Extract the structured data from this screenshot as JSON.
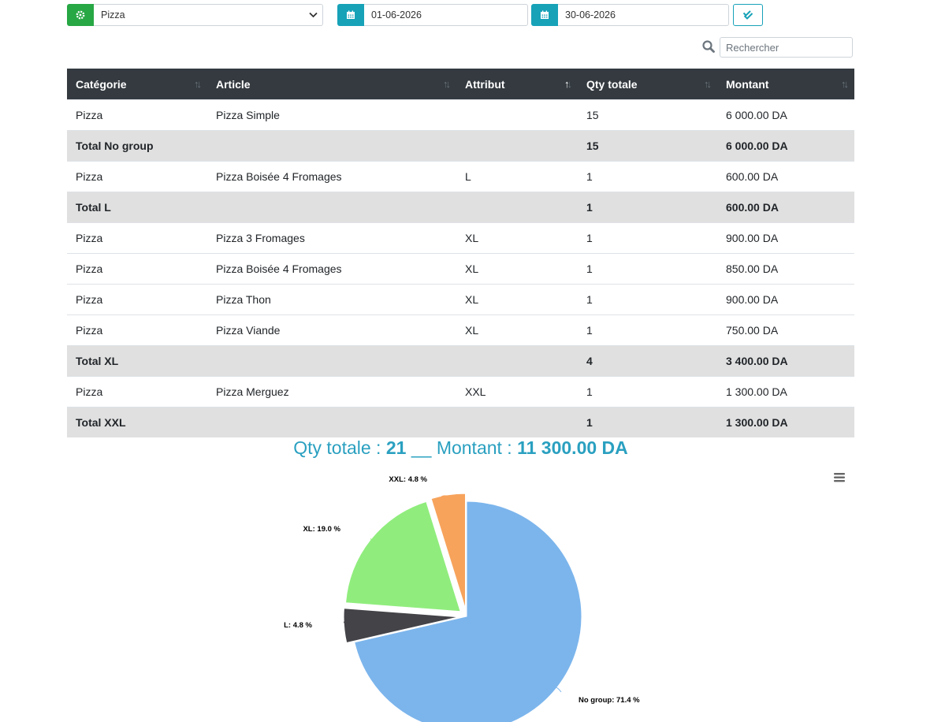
{
  "filters": {
    "category": {
      "icon": "cog-icon",
      "value": "Pizza"
    },
    "date_from": {
      "icon": "calendar-icon",
      "value": "01-06-2026"
    },
    "date_to": {
      "icon": "calendar-icon",
      "value": "30-06-2026"
    },
    "validate_icon": "double-check-icon"
  },
  "search": {
    "placeholder": "Rechercher",
    "icon": "search-icon"
  },
  "table": {
    "columns": [
      "Catégorie",
      "Article",
      "Attribut",
      "Qty totale",
      "Montant"
    ],
    "sorted_column": "Attribut",
    "sort_direction": "asc",
    "rows": [
      {
        "type": "row",
        "categorie": "Pizza",
        "article": "Pizza Simple",
        "attribut": "",
        "qty": "15",
        "montant": "6 000.00 DA"
      },
      {
        "type": "total",
        "label": "Total No group",
        "qty": "15",
        "montant": "6 000.00 DA"
      },
      {
        "type": "row",
        "categorie": "Pizza",
        "article": "Pizza Boisée 4 Fromages",
        "attribut": "L",
        "qty": "1",
        "montant": "600.00 DA"
      },
      {
        "type": "total",
        "label": "Total L",
        "qty": "1",
        "montant": "600.00 DA"
      },
      {
        "type": "row",
        "categorie": "Pizza",
        "article": "Pizza 3 Fromages",
        "attribut": "XL",
        "qty": "1",
        "montant": "900.00 DA"
      },
      {
        "type": "row",
        "categorie": "Pizza",
        "article": "Pizza Boisée 4 Fromages",
        "attribut": "XL",
        "qty": "1",
        "montant": "850.00 DA"
      },
      {
        "type": "row",
        "categorie": "Pizza",
        "article": "Pizza Thon",
        "attribut": "XL",
        "qty": "1",
        "montant": "900.00 DA"
      },
      {
        "type": "row",
        "categorie": "Pizza",
        "article": "Pizza Viande",
        "attribut": "XL",
        "qty": "1",
        "montant": "750.00 DA"
      },
      {
        "type": "total",
        "label": "Total XL",
        "qty": "4",
        "montant": "3 400.00 DA"
      },
      {
        "type": "row",
        "categorie": "Pizza",
        "article": "Pizza Merguez",
        "attribut": "XXL",
        "qty": "1",
        "montant": "1 300.00 DA"
      },
      {
        "type": "total",
        "label": "Total XXL",
        "qty": "1",
        "montant": "1 300.00 DA"
      }
    ]
  },
  "summary": {
    "qty_label": "Qty totale : ",
    "qty_value": "21",
    "separator": " __ ",
    "amount_label": "Montant : ",
    "amount_value": "11 300.00 DA"
  },
  "chart_menu_icon": "hamburger-menu-icon",
  "chart_data": {
    "type": "pie",
    "slices": [
      {
        "name": "No group",
        "value": 71.4,
        "label": "No group: 71.4 %",
        "color": "#7cb5ec",
        "sliced": false
      },
      {
        "name": "L",
        "value": 4.8,
        "label": "L: 4.8 %",
        "color": "#434348",
        "sliced": true
      },
      {
        "name": "XL",
        "value": 19.0,
        "label": "XL: 19.0 %",
        "color": "#90ed7d",
        "sliced": true
      },
      {
        "name": "XXL",
        "value": 4.8,
        "label": "XXL: 4.8 %",
        "color": "#f7a35c",
        "sliced": true
      }
    ]
  },
  "colors": {
    "header_bg": "#343a40",
    "total_row_bg": "#e0e0e0",
    "accent_teal": "#17a2b8",
    "accent_green": "#28a745",
    "summary_text": "#2aa0c0"
  }
}
